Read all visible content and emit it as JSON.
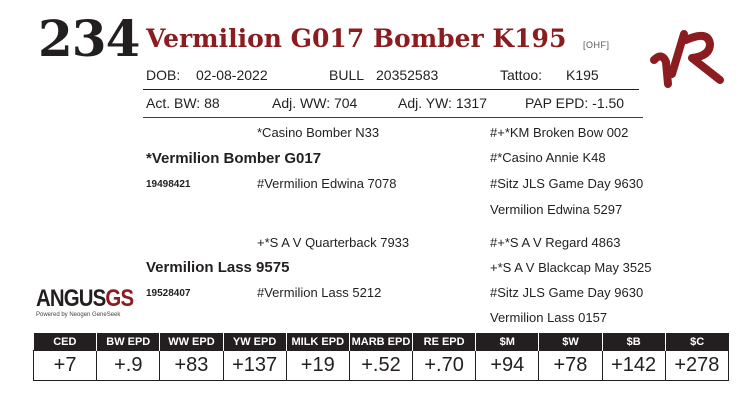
{
  "lot": "234",
  "name": "Vermilion G017 Bomber K195",
  "suffix": "[OHF]",
  "brand": "VR",
  "info_row1": {
    "dob_label": "DOB:",
    "dob": "02-08-2022",
    "sex": "BULL",
    "reg": "20352583",
    "tattoo_label": "Tattoo:",
    "tattoo": "K195"
  },
  "info_row2": {
    "act_bw": "Act. BW: 88",
    "adj_ww": "Adj. WW: 704",
    "adj_yw": "Adj. YW: 1317",
    "pap": "PAP EPD: -1.50"
  },
  "pedigree": {
    "sire": "*Vermilion Bomber G017",
    "sire_reg": "19498421",
    "sire_sire": "*Casino Bomber N33",
    "sire_dam": "#Vermilion Edwina 7078",
    "sss": "#+*KM Broken Bow 002",
    "ssd": "#*Casino Annie K48",
    "sds": "#Sitz JLS Game Day 9630",
    "sdd": "Vermilion Edwina 5297",
    "dam": "Vermilion Lass 9575",
    "dam_reg": "19528407",
    "dam_sire": "+*S A V Quarterback 7933",
    "dam_dam": "#Vermilion Lass 5212",
    "dss": "#+*S A V Regard 4863",
    "dsd": "+*S A V Blackcap May 3525",
    "dds": "#Sitz JLS Game Day 9630",
    "ddd": "Vermilion Lass 0157"
  },
  "logo": {
    "main": "ANGUS",
    "gs": "GS",
    "tagline": "Powered by Neogen GeneSeek"
  },
  "epd_headers": [
    "CED",
    "BW EPD",
    "WW EPD",
    "YW EPD",
    "MILK EPD",
    "MARB EPD",
    "RE EPD",
    "$M",
    "$W",
    "$B",
    "$C"
  ],
  "epd_values": [
    "+7",
    "+.9",
    "+83",
    "+137",
    "+19",
    "+.52",
    "+.70",
    "+94",
    "+78",
    "+142",
    "+278"
  ],
  "colors": {
    "accent": "#8b1c20",
    "text": "#231f20"
  }
}
